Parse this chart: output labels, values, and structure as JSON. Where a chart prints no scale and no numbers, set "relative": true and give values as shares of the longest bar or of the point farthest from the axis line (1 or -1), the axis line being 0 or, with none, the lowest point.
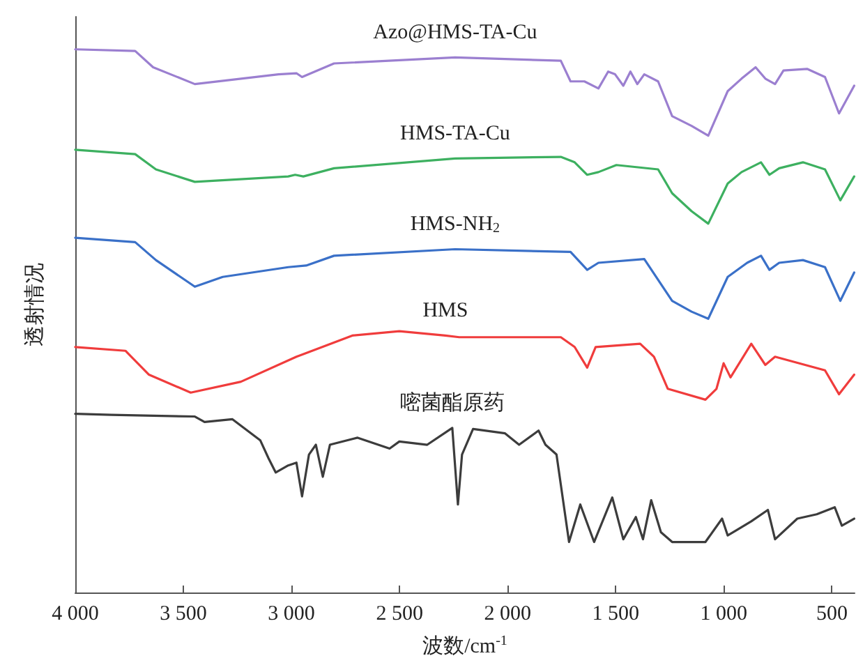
{
  "chart_data": {
    "type": "line",
    "relative": true,
    "xlabel": "波数/cm$^{-1}$",
    "ylabel": "透射情况",
    "xlim": [
      4000,
      395
    ],
    "xticks": [
      {
        "value": 4000,
        "label": "4 000"
      },
      {
        "value": 3500,
        "label": "3 500"
      },
      {
        "value": 3000,
        "label": "3 000"
      },
      {
        "value": 2500,
        "label": "2 500"
      },
      {
        "value": 2000,
        "label": "2 000"
      },
      {
        "value": 1500,
        "label": "1 500"
      },
      {
        "value": 1000,
        "label": "1 000"
      },
      500
    ],
    "tick_labels": "x",
    "line_style": "solid",
    "series": [
      {
        "name": "Azo@HMS-TA-Cu",
        "color": "#9b7fd0",
        "x": [
          4000,
          3723,
          3640,
          3447,
          3060,
          2977,
          2951,
          2803,
          2243,
          1754,
          1709,
          1645,
          1580,
          1535,
          1503,
          1465,
          1432,
          1400,
          1368,
          1304,
          1239,
          1149,
          1072,
          982,
          918,
          853,
          808,
          763,
          724,
          615,
          532,
          467,
          397
        ],
        "values": [
          1.0,
          0.997,
          0.967,
          0.936,
          0.954,
          0.956,
          0.949,
          0.974,
          0.985,
          0.979,
          0.941,
          0.941,
          0.928,
          0.959,
          0.954,
          0.933,
          0.959,
          0.936,
          0.954,
          0.941,
          0.877,
          0.859,
          0.841,
          0.923,
          0.946,
          0.967,
          0.946,
          0.936,
          0.961,
          0.964,
          0.949,
          0.882,
          0.933
        ]
      },
      {
        "name": "HMS-TA-Cu",
        "color": "#3db060",
        "x": [
          4000,
          3723,
          3627,
          3447,
          3015,
          2983,
          2945,
          2803,
          2243,
          1754,
          1690,
          1632,
          1580,
          1497,
          1304,
          1239,
          1149,
          1072,
          982,
          918,
          828,
          789,
          744,
          634,
          532,
          461,
          397
        ],
        "values": [
          0.815,
          0.807,
          0.779,
          0.756,
          0.766,
          0.769,
          0.766,
          0.781,
          0.799,
          0.802,
          0.792,
          0.769,
          0.774,
          0.787,
          0.779,
          0.735,
          0.702,
          0.679,
          0.753,
          0.774,
          0.792,
          0.769,
          0.781,
          0.792,
          0.779,
          0.722,
          0.766
        ]
      },
      {
        "name": "HMS-NH$_{2}$",
        "color": "#3a70c8",
        "x": [
          4000,
          3723,
          3627,
          3447,
          3318,
          3015,
          2932,
          2803,
          2243,
          1709,
          1632,
          1580,
          1368,
          1239,
          1149,
          1072,
          982,
          892,
          828,
          789,
          744,
          634,
          532,
          461,
          397
        ],
        "values": [
          0.653,
          0.645,
          0.612,
          0.563,
          0.581,
          0.599,
          0.602,
          0.62,
          0.632,
          0.627,
          0.594,
          0.607,
          0.614,
          0.537,
          0.517,
          0.504,
          0.581,
          0.607,
          0.62,
          0.594,
          0.607,
          0.612,
          0.599,
          0.537,
          0.589
        ]
      },
      {
        "name": "HMS",
        "color": "#f03c3c",
        "x": [
          4000,
          3768,
          3659,
          3466,
          3234,
          2977,
          2719,
          2501,
          2288,
          2224,
          1754,
          1690,
          1632,
          1593,
          1387,
          1323,
          1259,
          1085,
          1034,
          1001,
          969,
          873,
          808,
          763,
          532,
          467,
          397
        ],
        "values": [
          0.452,
          0.445,
          0.401,
          0.368,
          0.388,
          0.434,
          0.473,
          0.481,
          0.473,
          0.47,
          0.47,
          0.452,
          0.414,
          0.452,
          0.458,
          0.434,
          0.375,
          0.355,
          0.375,
          0.422,
          0.396,
          0.458,
          0.419,
          0.434,
          0.409,
          0.365,
          0.401
        ]
      },
      {
        "name": "嘧菌酯原药",
        "color": "#3c3c3c",
        "x": [
          4000,
          3833,
          3447,
          3402,
          3273,
          3144,
          3106,
          3073,
          3015,
          2977,
          2951,
          2919,
          2887,
          2855,
          2822,
          2694,
          2546,
          2501,
          2372,
          2256,
          2230,
          2211,
          2160,
          2012,
          1947,
          1857,
          1825,
          1774,
          1716,
          1664,
          1600,
          1516,
          1465,
          1407,
          1374,
          1336,
          1291,
          1239,
          1149,
          1085,
          1008,
          982,
          873,
          796,
          763,
          660,
          570,
          487,
          454,
          397
        ],
        "values": [
          0.329,
          0.327,
          0.324,
          0.314,
          0.319,
          0.28,
          0.247,
          0.221,
          0.234,
          0.239,
          0.177,
          0.254,
          0.272,
          0.213,
          0.272,
          0.285,
          0.265,
          0.278,
          0.272,
          0.303,
          0.162,
          0.254,
          0.301,
          0.293,
          0.272,
          0.298,
          0.272,
          0.254,
          0.093,
          0.162,
          0.093,
          0.175,
          0.098,
          0.139,
          0.098,
          0.17,
          0.111,
          0.093,
          0.093,
          0.093,
          0.136,
          0.105,
          0.131,
          0.152,
          0.098,
          0.136,
          0.144,
          0.157,
          0.123,
          0.136
        ]
      }
    ]
  }
}
